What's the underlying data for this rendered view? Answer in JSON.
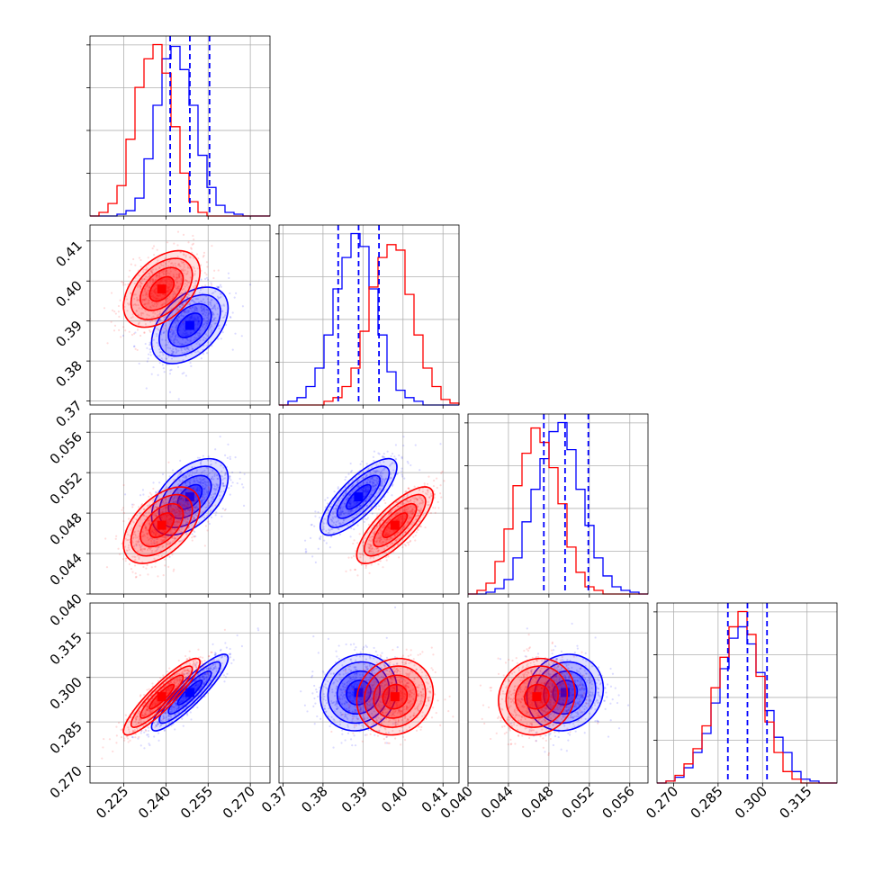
{
  "chart_data": {
    "type": "corner",
    "series": [
      {
        "name": "",
        "color": "#0000ff"
      },
      {
        "name": "",
        "color": "#ff0000"
      }
    ],
    "grid": true,
    "params": [
      {
        "range": [
          0.213,
          0.277
        ],
        "ticks": [
          "0.225",
          "0.240",
          "0.255",
          "0.270"
        ],
        "tickvals": [
          0.225,
          0.24,
          0.255,
          0.27
        ],
        "quantiles": [
          0.2415,
          0.2485,
          0.2555
        ],
        "hist_blue": [
          0,
          0,
          0,
          1,
          3,
          10,
          32,
          62,
          88,
          95,
          82,
          62,
          34,
          16,
          6,
          2,
          1,
          0,
          0,
          0
        ],
        "hist_red": [
          0,
          2,
          7,
          17,
          43,
          72,
          88,
          96,
          80,
          50,
          24,
          8,
          2,
          0,
          0,
          0,
          0,
          0,
          0,
          0
        ]
      },
      {
        "range": [
          0.369,
          0.414
        ],
        "ticks": [
          "0.37",
          "0.38",
          "0.39",
          "0.40",
          "0.41"
        ],
        "tickvals": [
          0.37,
          0.38,
          0.39,
          0.4,
          0.41
        ],
        "quantiles": [
          0.3838,
          0.3889,
          0.394
        ],
        "hist_blue": [
          0,
          2,
          4,
          10,
          20,
          38,
          63,
          80,
          93,
          86,
          63,
          38,
          18,
          8,
          4,
          2,
          0,
          0,
          0,
          0
        ],
        "hist_red": [
          0,
          0,
          0,
          0,
          0,
          2,
          4,
          10,
          20,
          40,
          64,
          80,
          87,
          84,
          60,
          38,
          20,
          10,
          3,
          1
        ]
      },
      {
        "range": [
          0.04,
          0.0578
        ],
        "ticks": [
          "0.040",
          "0.044",
          "0.048",
          "0.052",
          "0.056"
        ],
        "tickvals": [
          0.04,
          0.044,
          0.048,
          0.052,
          0.056
        ],
        "quantiles": [
          0.0475,
          0.0496,
          0.0519
        ],
        "hist_blue": [
          0,
          0,
          1,
          3,
          8,
          20,
          40,
          58,
          75,
          90,
          95,
          80,
          58,
          38,
          20,
          10,
          4,
          2,
          1,
          0
        ],
        "hist_red": [
          0,
          2,
          6,
          18,
          36,
          60,
          78,
          92,
          84,
          70,
          50,
          26,
          12,
          4,
          2,
          0,
          0,
          0,
          0,
          0
        ]
      },
      {
        "range": [
          0.2644,
          0.3251
        ],
        "ticks": [
          "0.270",
          "0.285",
          "0.300",
          "0.315"
        ],
        "tickvals": [
          0.27,
          0.285,
          0.3,
          0.315
        ],
        "quantiles": [
          0.2883,
          0.2949,
          0.3015
        ],
        "hist_blue": [
          0,
          1,
          3,
          8,
          16,
          26,
          42,
          60,
          76,
          82,
          73,
          58,
          38,
          24,
          16,
          6,
          2,
          1,
          0,
          0
        ],
        "hist_red": [
          0,
          1,
          4,
          10,
          18,
          30,
          50,
          66,
          82,
          90,
          78,
          56,
          32,
          16,
          6,
          2,
          0,
          0,
          0,
          0
        ]
      }
    ],
    "pairs_2d": [
      {
        "row": 1,
        "col": 0,
        "blue_center": [
          0.2485,
          0.3889
        ],
        "red_center": [
          0.2385,
          0.398
        ],
        "corr": 0.45
      },
      {
        "row": 2,
        "col": 0,
        "blue_center": [
          0.2485,
          0.0496
        ],
        "red_center": [
          0.2385,
          0.0468
        ],
        "corr": 0.5
      },
      {
        "row": 2,
        "col": 1,
        "blue_center": [
          0.3889,
          0.0496
        ],
        "red_center": [
          0.398,
          0.0468
        ],
        "corr": 0.78
      },
      {
        "row": 3,
        "col": 0,
        "blue_center": [
          0.2485,
          0.2949
        ],
        "red_center": [
          0.2385,
          0.2935
        ],
        "corr": 0.9
      },
      {
        "row": 3,
        "col": 1,
        "blue_center": [
          0.3889,
          0.2949
        ],
        "red_center": [
          0.398,
          0.2935
        ],
        "corr": 0.1
      },
      {
        "row": 3,
        "col": 2,
        "blue_center": [
          0.0496,
          0.2949
        ],
        "red_center": [
          0.0468,
          0.2935
        ],
        "corr": 0.1
      }
    ]
  }
}
